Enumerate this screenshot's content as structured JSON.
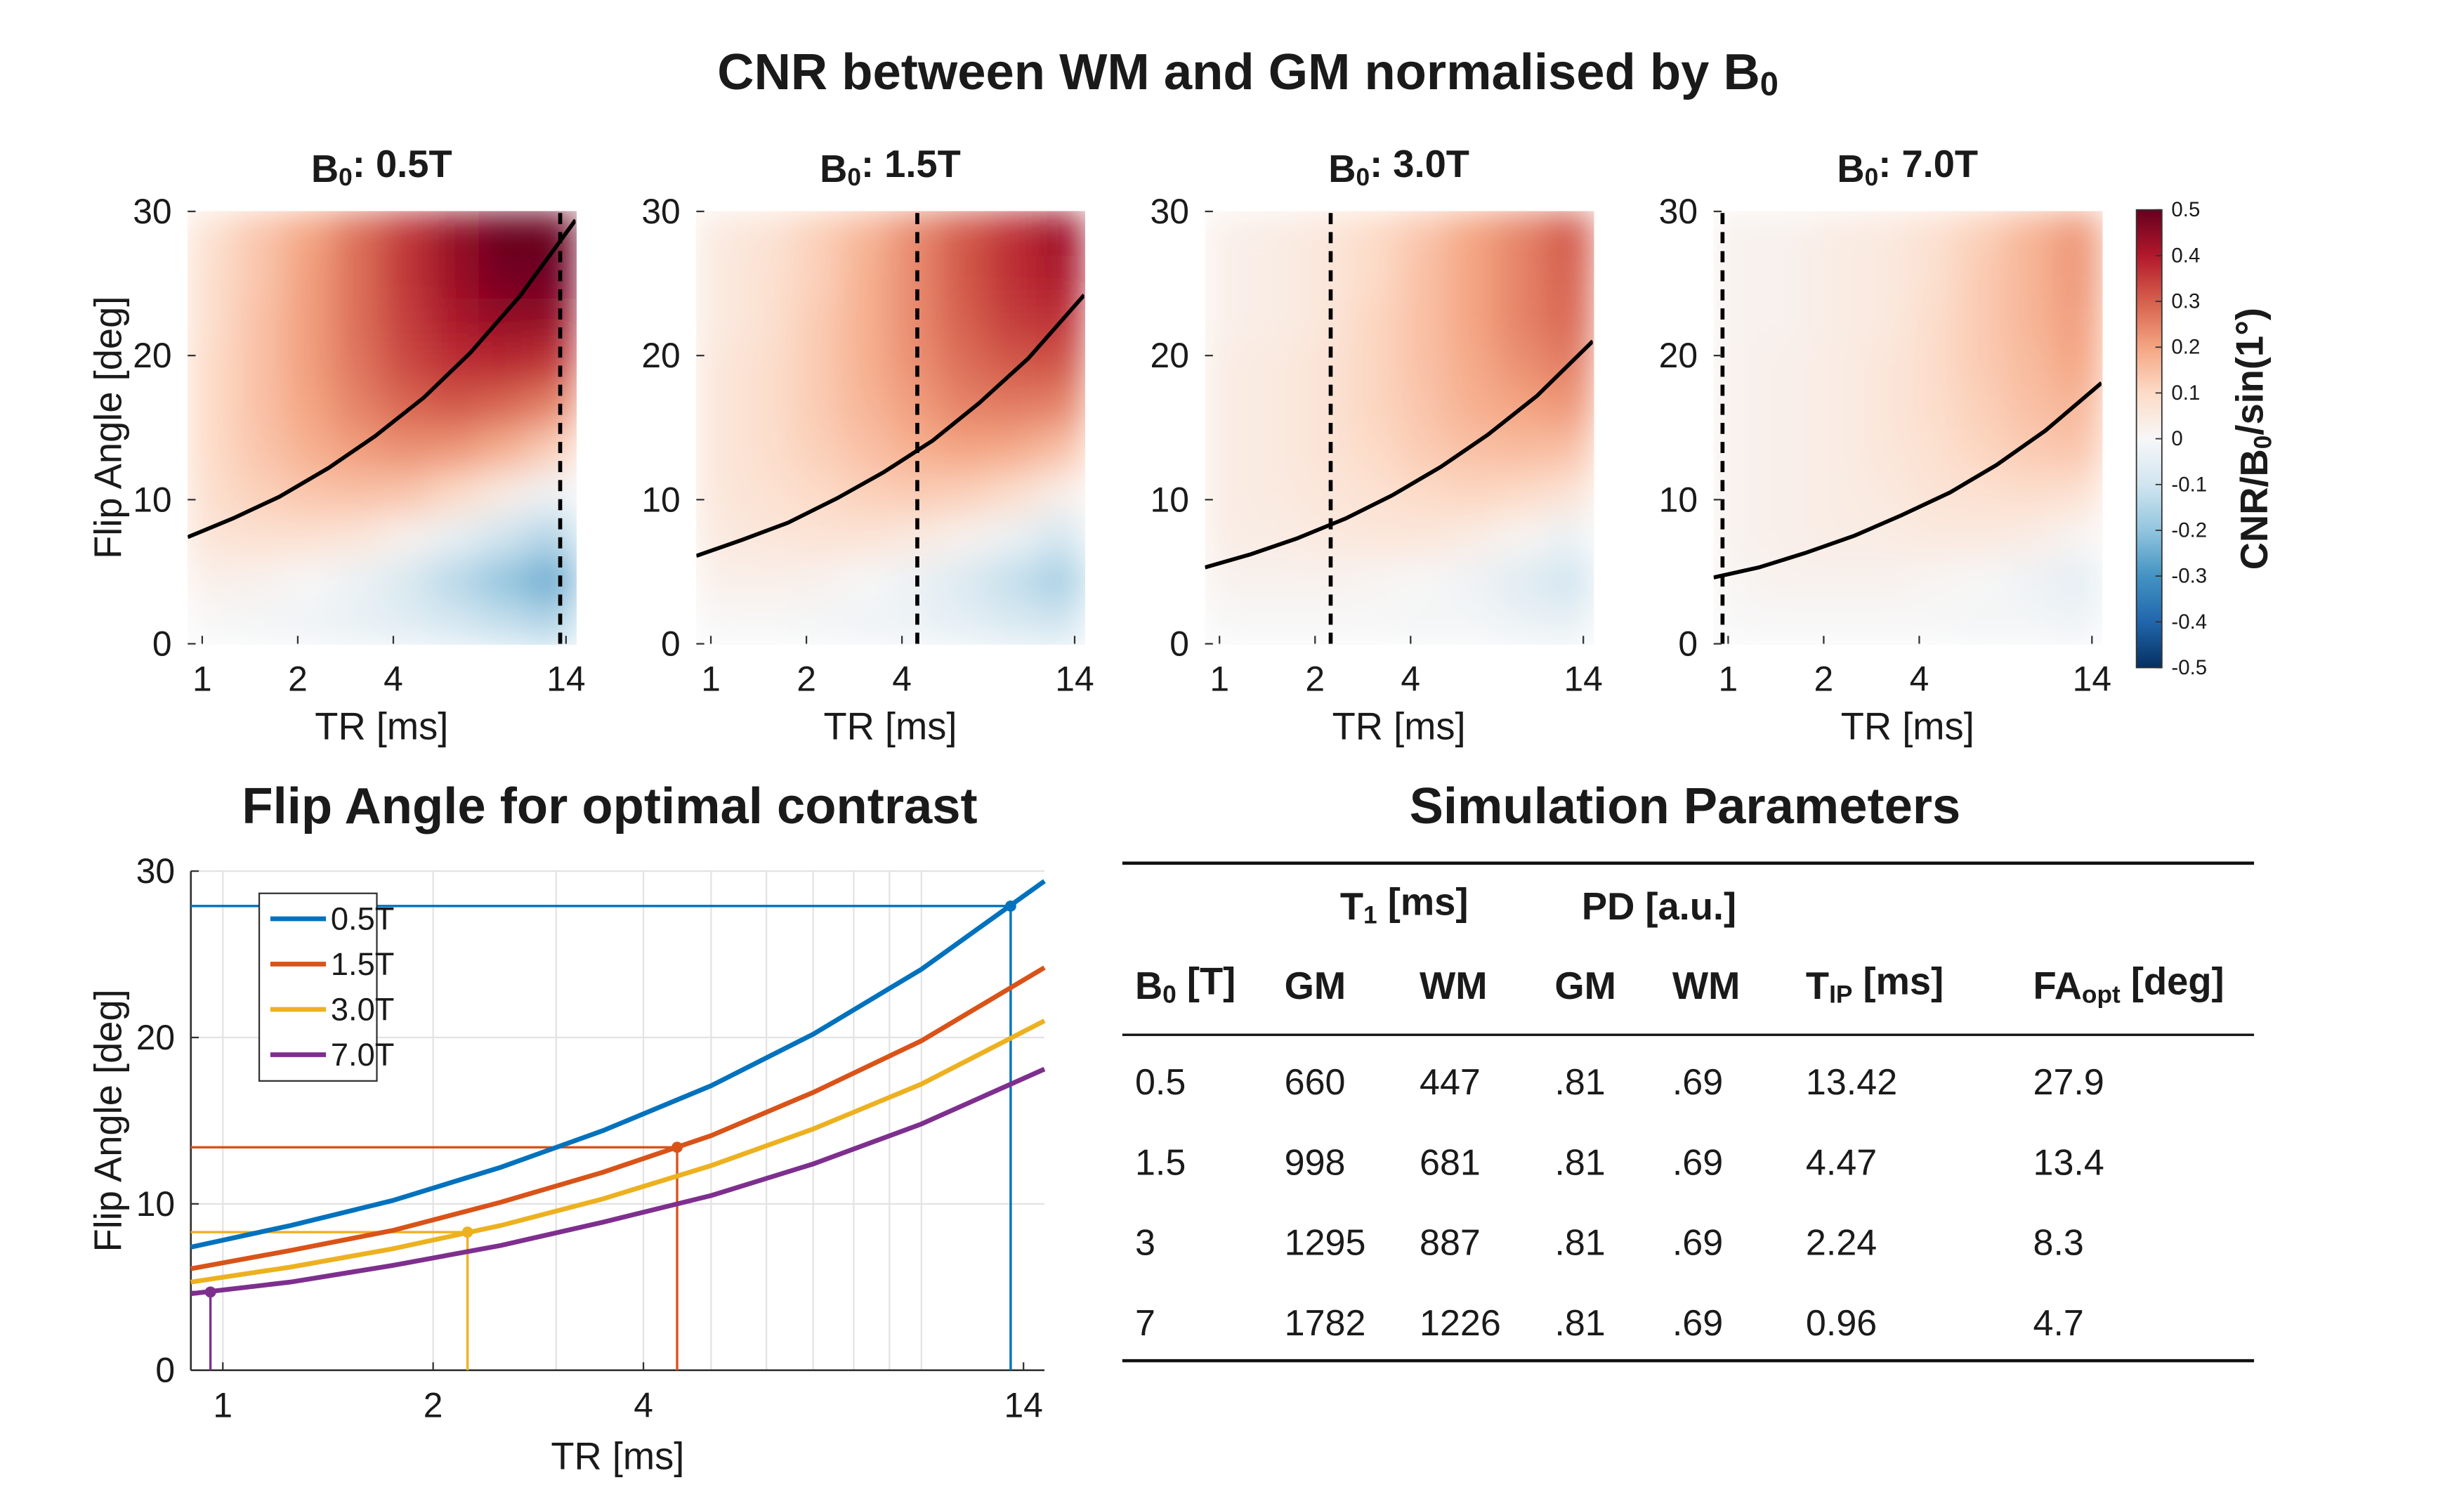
{
  "title": {
    "base": "CNR between WM and GM normalised by B",
    "sub": "0"
  },
  "chart_data": [
    {
      "type": "heatmap",
      "title": {
        "base": "B",
        "sub": "0",
        "rest": ": 0.5T"
      },
      "x_label": "TR [ms]",
      "y_label": "Flip Angle [deg]",
      "x_scale": "log",
      "xlim": [
        0.9,
        15
      ],
      "ylim": [
        0,
        30
      ],
      "xticks": [
        1,
        2,
        4,
        14
      ],
      "yticks": [
        0,
        10,
        20,
        30
      ],
      "x": [
        1.07,
        1.53,
        2.17,
        3.08,
        4.38,
        6.23,
        8.85,
        12.6
      ],
      "y": [
        1.5,
        4.5,
        7.5,
        10.5,
        13.5,
        16.5,
        19.5,
        22.5,
        25.5,
        28.5
      ],
      "z": [
        [
          0.0,
          -0.01,
          -0.02,
          -0.04,
          -0.06,
          -0.09,
          -0.12,
          -0.15
        ],
        [
          0.03,
          0.02,
          0.0,
          -0.03,
          -0.08,
          -0.14,
          -0.2,
          -0.25
        ],
        [
          0.07,
          0.08,
          0.08,
          0.06,
          0.02,
          -0.04,
          -0.1,
          -0.15
        ],
        [
          0.09,
          0.12,
          0.14,
          0.15,
          0.14,
          0.1,
          0.04,
          -0.02
        ],
        [
          0.1,
          0.14,
          0.18,
          0.21,
          0.23,
          0.22,
          0.18,
          0.12
        ],
        [
          0.1,
          0.15,
          0.2,
          0.25,
          0.29,
          0.31,
          0.29,
          0.25
        ],
        [
          0.1,
          0.15,
          0.21,
          0.27,
          0.33,
          0.37,
          0.38,
          0.36
        ],
        [
          0.09,
          0.15,
          0.21,
          0.28,
          0.35,
          0.41,
          0.44,
          0.44
        ],
        [
          0.09,
          0.14,
          0.21,
          0.28,
          0.36,
          0.43,
          0.48,
          0.49
        ],
        [
          0.08,
          0.14,
          0.2,
          0.28,
          0.36,
          0.44,
          0.5,
          0.5
        ]
      ],
      "curve": {
        "x": [
          0.9,
          1.25,
          1.75,
          2.5,
          3.5,
          5,
          7,
          10,
          15
        ],
        "y": [
          7.4,
          8.7,
          10.2,
          12.2,
          14.4,
          17.1,
          20.2,
          24.1,
          29.4
        ],
        "color": "#000000"
      },
      "tip": 13.42
    },
    {
      "type": "heatmap",
      "title": {
        "base": "B",
        "sub": "0",
        "rest": ": 1.5T"
      },
      "x_label": "TR [ms]",
      "x_scale": "log",
      "xlim": [
        0.9,
        15
      ],
      "ylim": [
        0,
        30
      ],
      "xticks": [
        1,
        2,
        4,
        14
      ],
      "yticks": [
        0,
        10,
        20,
        30
      ],
      "x": [
        1.07,
        1.53,
        2.17,
        3.08,
        4.38,
        6.23,
        8.85,
        12.6
      ],
      "y": [
        1.5,
        4.5,
        7.5,
        10.5,
        13.5,
        16.5,
        19.5,
        22.5,
        25.5,
        28.5
      ],
      "z": [
        [
          0.0,
          0.0,
          -0.01,
          -0.02,
          -0.03,
          -0.05,
          -0.08,
          -0.1
        ],
        [
          0.03,
          0.03,
          0.02,
          0.0,
          -0.03,
          -0.07,
          -0.12,
          -0.17
        ],
        [
          0.05,
          0.06,
          0.07,
          0.07,
          0.05,
          0.02,
          -0.03,
          -0.09
        ],
        [
          0.06,
          0.08,
          0.1,
          0.12,
          0.13,
          0.12,
          0.09,
          0.03
        ],
        [
          0.06,
          0.09,
          0.12,
          0.15,
          0.18,
          0.2,
          0.19,
          0.15
        ],
        [
          0.06,
          0.09,
          0.13,
          0.17,
          0.21,
          0.25,
          0.26,
          0.25
        ],
        [
          0.06,
          0.09,
          0.13,
          0.18,
          0.23,
          0.28,
          0.31,
          0.32
        ],
        [
          0.05,
          0.08,
          0.13,
          0.18,
          0.24,
          0.3,
          0.35,
          0.37
        ],
        [
          0.05,
          0.08,
          0.12,
          0.18,
          0.24,
          0.31,
          0.37,
          0.41
        ],
        [
          0.05,
          0.07,
          0.12,
          0.17,
          0.24,
          0.31,
          0.37,
          0.43
        ]
      ],
      "curve": {
        "x": [
          0.9,
          1.25,
          1.75,
          2.5,
          3.5,
          5,
          7,
          10,
          15
        ],
        "y": [
          6.1,
          7.2,
          8.4,
          10.1,
          11.9,
          14.1,
          16.7,
          19.8,
          24.2
        ],
        "color": "#000000"
      },
      "tip": 4.47
    },
    {
      "type": "heatmap",
      "title": {
        "base": "B",
        "sub": "0",
        "rest": ": 3.0T"
      },
      "x_label": "TR [ms]",
      "x_scale": "log",
      "xlim": [
        0.9,
        15
      ],
      "ylim": [
        0,
        30
      ],
      "xticks": [
        1,
        2,
        4,
        14
      ],
      "yticks": [
        0,
        10,
        20,
        30
      ],
      "x": [
        1.07,
        1.53,
        2.17,
        3.08,
        4.38,
        6.23,
        8.85,
        12.6
      ],
      "y": [
        1.5,
        4.5,
        7.5,
        10.5,
        13.5,
        16.5,
        19.5,
        22.5,
        25.5,
        28.5
      ],
      "z": [
        [
          0.0,
          0.0,
          0.0,
          0.0,
          -0.01,
          -0.01,
          -0.03,
          -0.04
        ],
        [
          0.02,
          0.02,
          0.02,
          0.01,
          0.0,
          -0.02,
          -0.06,
          -0.1
        ],
        [
          0.04,
          0.04,
          0.05,
          0.06,
          0.06,
          0.04,
          0.01,
          -0.03
        ],
        [
          0.04,
          0.05,
          0.06,
          0.08,
          0.1,
          0.11,
          0.1,
          0.07
        ],
        [
          0.04,
          0.05,
          0.07,
          0.1,
          0.13,
          0.15,
          0.16,
          0.15
        ],
        [
          0.04,
          0.05,
          0.07,
          0.11,
          0.14,
          0.18,
          0.2,
          0.22
        ],
        [
          0.04,
          0.05,
          0.07,
          0.11,
          0.15,
          0.19,
          0.23,
          0.26
        ],
        [
          0.03,
          0.04,
          0.06,
          0.11,
          0.15,
          0.2,
          0.25,
          0.29
        ],
        [
          0.03,
          0.04,
          0.06,
          0.1,
          0.15,
          0.2,
          0.25,
          0.3
        ],
        [
          0.03,
          0.04,
          0.06,
          0.1,
          0.14,
          0.2,
          0.25,
          0.31
        ]
      ],
      "curve": {
        "x": [
          0.9,
          1.25,
          1.75,
          2.5,
          3.5,
          5,
          7,
          10,
          15
        ],
        "y": [
          5.3,
          6.2,
          7.3,
          8.7,
          10.3,
          12.3,
          14.5,
          17.2,
          21.0
        ],
        "color": "#000000"
      },
      "tip": 2.24
    },
    {
      "type": "heatmap",
      "title": {
        "base": "B",
        "sub": "0",
        "rest": ": 7.0T"
      },
      "x_label": "TR [ms]",
      "x_scale": "log",
      "xlim": [
        0.9,
        15
      ],
      "ylim": [
        0,
        30
      ],
      "xticks": [
        1,
        2,
        4,
        14
      ],
      "yticks": [
        0,
        10,
        20,
        30
      ],
      "x": [
        1.07,
        1.53,
        2.17,
        3.08,
        4.38,
        6.23,
        8.85,
        12.6
      ],
      "y": [
        1.5,
        4.5,
        7.5,
        10.5,
        13.5,
        16.5,
        19.5,
        22.5,
        25.5,
        28.5
      ],
      "z": [
        [
          0.0,
          0.0,
          0.0,
          0.0,
          0.0,
          -0.01,
          -0.01,
          -0.02
        ],
        [
          0.01,
          0.02,
          0.02,
          0.02,
          0.01,
          0.0,
          -0.02,
          -0.05
        ],
        [
          0.02,
          0.03,
          0.04,
          0.04,
          0.05,
          0.05,
          0.04,
          0.01
        ],
        [
          0.02,
          0.03,
          0.04,
          0.05,
          0.07,
          0.08,
          0.09,
          0.08
        ],
        [
          0.02,
          0.03,
          0.04,
          0.06,
          0.08,
          0.11,
          0.13,
          0.14
        ],
        [
          0.02,
          0.03,
          0.04,
          0.06,
          0.09,
          0.12,
          0.15,
          0.17
        ],
        [
          0.02,
          0.03,
          0.04,
          0.06,
          0.09,
          0.13,
          0.16,
          0.2
        ],
        [
          0.02,
          0.02,
          0.04,
          0.05,
          0.09,
          0.13,
          0.17,
          0.21
        ],
        [
          0.02,
          0.02,
          0.04,
          0.05,
          0.08,
          0.13,
          0.17,
          0.22
        ],
        [
          0.02,
          0.02,
          0.04,
          0.05,
          0.08,
          0.12,
          0.17,
          0.22
        ]
      ],
      "curve": {
        "x": [
          0.9,
          1.25,
          1.75,
          2.5,
          3.5,
          5,
          7,
          10,
          15
        ],
        "y": [
          4.6,
          5.3,
          6.3,
          7.5,
          8.9,
          10.5,
          12.4,
          14.8,
          18.1
        ],
        "color": "#000000"
      },
      "tip": 0.96
    },
    {
      "type": "line",
      "title": "Flip Angle for optimal contrast",
      "x_label": "TR [ms]",
      "y_label": "Flip Angle [deg]",
      "x_scale": "log",
      "xlim": [
        0.9,
        15
      ],
      "ylim": [
        0,
        30
      ],
      "xticks": [
        1,
        2,
        4,
        14
      ],
      "yticks": [
        0,
        10,
        20,
        30
      ],
      "minor_xticks": [
        1,
        2,
        3,
        4,
        5,
        6,
        7,
        8,
        9,
        10
      ],
      "grid": true,
      "legend": "upper-left",
      "x": [
        0.9,
        1.25,
        1.75,
        2.5,
        3.5,
        5,
        7,
        10,
        15
      ],
      "series": [
        {
          "name": "0.5T",
          "color": "#0072bd",
          "values": [
            7.4,
            8.7,
            10.2,
            12.2,
            14.4,
            17.1,
            20.2,
            24.1,
            29.4
          ],
          "opt_tr": 13.42,
          "opt_fa": 27.9
        },
        {
          "name": "1.5T",
          "color": "#d95319",
          "values": [
            6.1,
            7.2,
            8.4,
            10.1,
            11.9,
            14.1,
            16.7,
            19.8,
            24.2
          ],
          "opt_tr": 4.47,
          "opt_fa": 13.4
        },
        {
          "name": "3.0T",
          "color": "#edb120",
          "values": [
            5.3,
            6.2,
            7.3,
            8.7,
            10.3,
            12.3,
            14.5,
            17.2,
            21.0
          ],
          "opt_tr": 2.24,
          "opt_fa": 8.3
        },
        {
          "name": "7.0T",
          "color": "#7e2f8e",
          "values": [
            4.6,
            5.3,
            6.3,
            7.5,
            8.9,
            10.5,
            12.4,
            14.8,
            18.1
          ],
          "opt_tr": 0.96,
          "opt_fa": 4.7
        }
      ]
    }
  ],
  "colorbar": {
    "label": {
      "base": "CNR/B",
      "sub": "0",
      "rest": "/sin(1°)"
    },
    "clim": [
      -0.5,
      0.5
    ],
    "ticks": [
      -0.5,
      -0.4,
      -0.3,
      -0.2,
      -0.1,
      0,
      0.1,
      0.2,
      0.3,
      0.4,
      0.5
    ],
    "colormap": [
      "#053061",
      "#2166ac",
      "#4393c3",
      "#92c5de",
      "#d1e5f0",
      "#f7f7f7",
      "#fddbc7",
      "#f4a582",
      "#d6604d",
      "#b2182b",
      "#67001f"
    ]
  },
  "table": {
    "title": "Simulation Parameters",
    "group_headers": [
      {
        "base": "T",
        "sub": "1",
        "rest": " [ms]"
      },
      {
        "base": "PD [a.u.]"
      }
    ],
    "columns": [
      {
        "base": "B",
        "sub": "0",
        "rest": " [T]"
      },
      {
        "base": "GM"
      },
      {
        "base": "WM"
      },
      {
        "base": "GM"
      },
      {
        "base": "WM"
      },
      {
        "base": "T",
        "sub": "IP",
        "rest": " [ms]"
      },
      {
        "base": "FA",
        "sub": "opt",
        "rest": " [deg]"
      }
    ],
    "rows": [
      [
        "0.5",
        "660",
        "447",
        ".81",
        ".69",
        "13.42",
        "27.9"
      ],
      [
        "1.5",
        "998",
        "681",
        ".81",
        ".69",
        "4.47",
        "13.4"
      ],
      [
        "3",
        "1295",
        "887",
        ".81",
        ".69",
        "2.24",
        "8.3"
      ],
      [
        "7",
        "1782",
        "1226",
        ".81",
        ".69",
        "0.96",
        "4.7"
      ]
    ]
  }
}
